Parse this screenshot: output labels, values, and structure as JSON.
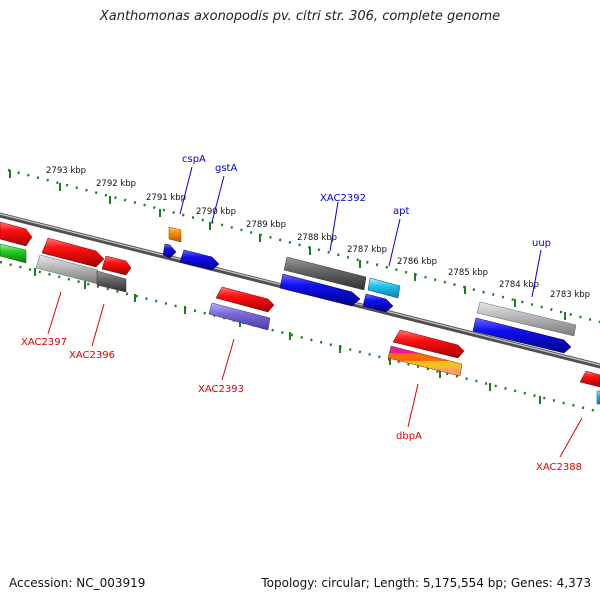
{
  "title": "Xanthomonas axonopodis pv. citri str. 306, complete genome",
  "footer": {
    "accession": "Accession: NC_003919",
    "topology": "Topology: circular; Length: 5,175,554 bp; Genes: 4,373"
  },
  "colors": {
    "forward_label": "#0000cc",
    "reverse_label": "#dd0000",
    "tick": "#1a7f1a",
    "backbone": "#7a7a7a"
  },
  "ticks": [
    "2793 kbp",
    "2792 kbp",
    "2791 kbp",
    "2790 kbp",
    "2789 kbp",
    "2788 kbp",
    "2787 kbp",
    "2786 kbp",
    "2785 kbp",
    "2784 kbp",
    "2783 kbp"
  ],
  "forward_labels": [
    "cspA",
    "gstA",
    "XAC2392",
    "apt",
    "uup"
  ],
  "reverse_labels": [
    "XAC2397",
    "XAC2396",
    "XAC2393",
    "dbpA",
    "XAC2388"
  ]
}
